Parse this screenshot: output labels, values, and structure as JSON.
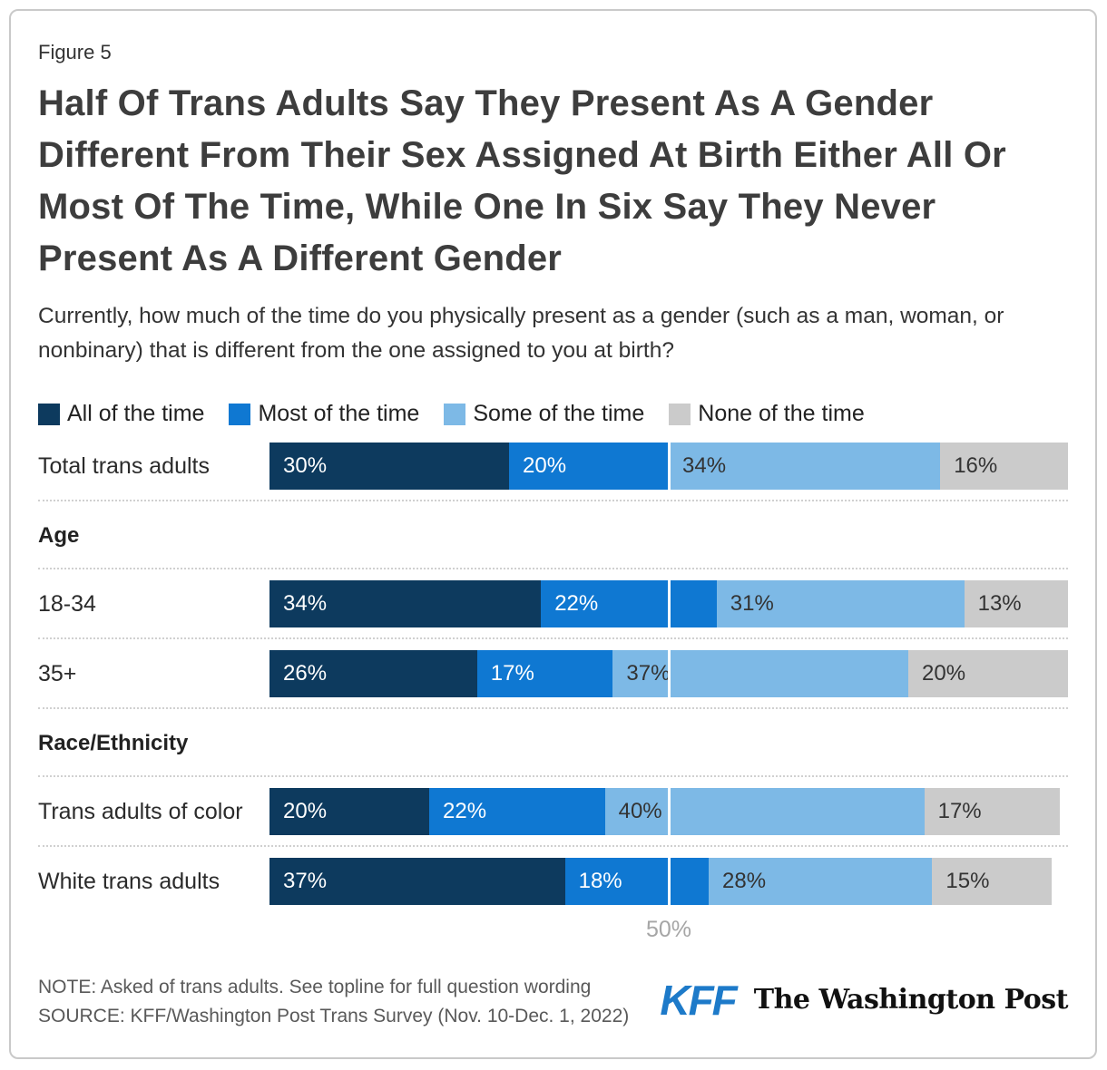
{
  "figure_label": "Figure 5",
  "title": "Half Of Trans Adults Say They Present As A Gender Different From Their Sex Assigned At Birth Either All Or Most Of The Time, While One In Six Say They Never Present As A Different Gender",
  "subtitle": "Currently, how much of the time do you physically present as a gender (such as a man, woman, or nonbinary) that is different from the one assigned to you at birth?",
  "legend": {
    "items": [
      {
        "label": "All of the time",
        "color": "#0d3a5e"
      },
      {
        "label": "Most of the time",
        "color": "#0f78d2"
      },
      {
        "label": "Some of the time",
        "color": "#7db9e6"
      },
      {
        "label": "None of the time",
        "color": "#cbcbcb"
      }
    ]
  },
  "chart_data": {
    "type": "bar",
    "stacked": true,
    "orientation": "horizontal",
    "unit": "%",
    "xlim": [
      0,
      100
    ],
    "series_names": [
      "All of the time",
      "Most of the time",
      "Some of the time",
      "None of the time"
    ],
    "series_colors": [
      "#0d3a5e",
      "#0f78d2",
      "#7db9e6",
      "#cbcbcb"
    ],
    "value_label_colors": [
      "#ffffff",
      "#ffffff",
      "#333333",
      "#333333"
    ],
    "gridline": {
      "pct": 50,
      "label": "50%"
    },
    "groups": [
      {
        "header": "",
        "rows": [
          {
            "label": "Total trans adults",
            "values": [
              30,
              20,
              34,
              16
            ]
          }
        ]
      },
      {
        "header": "Age",
        "rows": [
          {
            "label": "18-34",
            "values": [
              34,
              22,
              31,
              13
            ]
          },
          {
            "label": "35+",
            "values": [
              26,
              17,
              37,
              20
            ]
          }
        ]
      },
      {
        "header": "Race/Ethnicity",
        "rows": [
          {
            "label": "Trans adults of color",
            "values": [
              20,
              22,
              40,
              17
            ]
          },
          {
            "label": "White trans adults",
            "values": [
              37,
              18,
              28,
              15
            ]
          }
        ]
      }
    ]
  },
  "footer": {
    "note": "NOTE: Asked of trans adults. See topline for full question wording",
    "source": "SOURCE: KFF/Washington Post Trans Survey (Nov. 10-Dec. 1, 2022)",
    "kff_logo_text": "KFF",
    "wapo_logo_text": "The Washington Post"
  }
}
